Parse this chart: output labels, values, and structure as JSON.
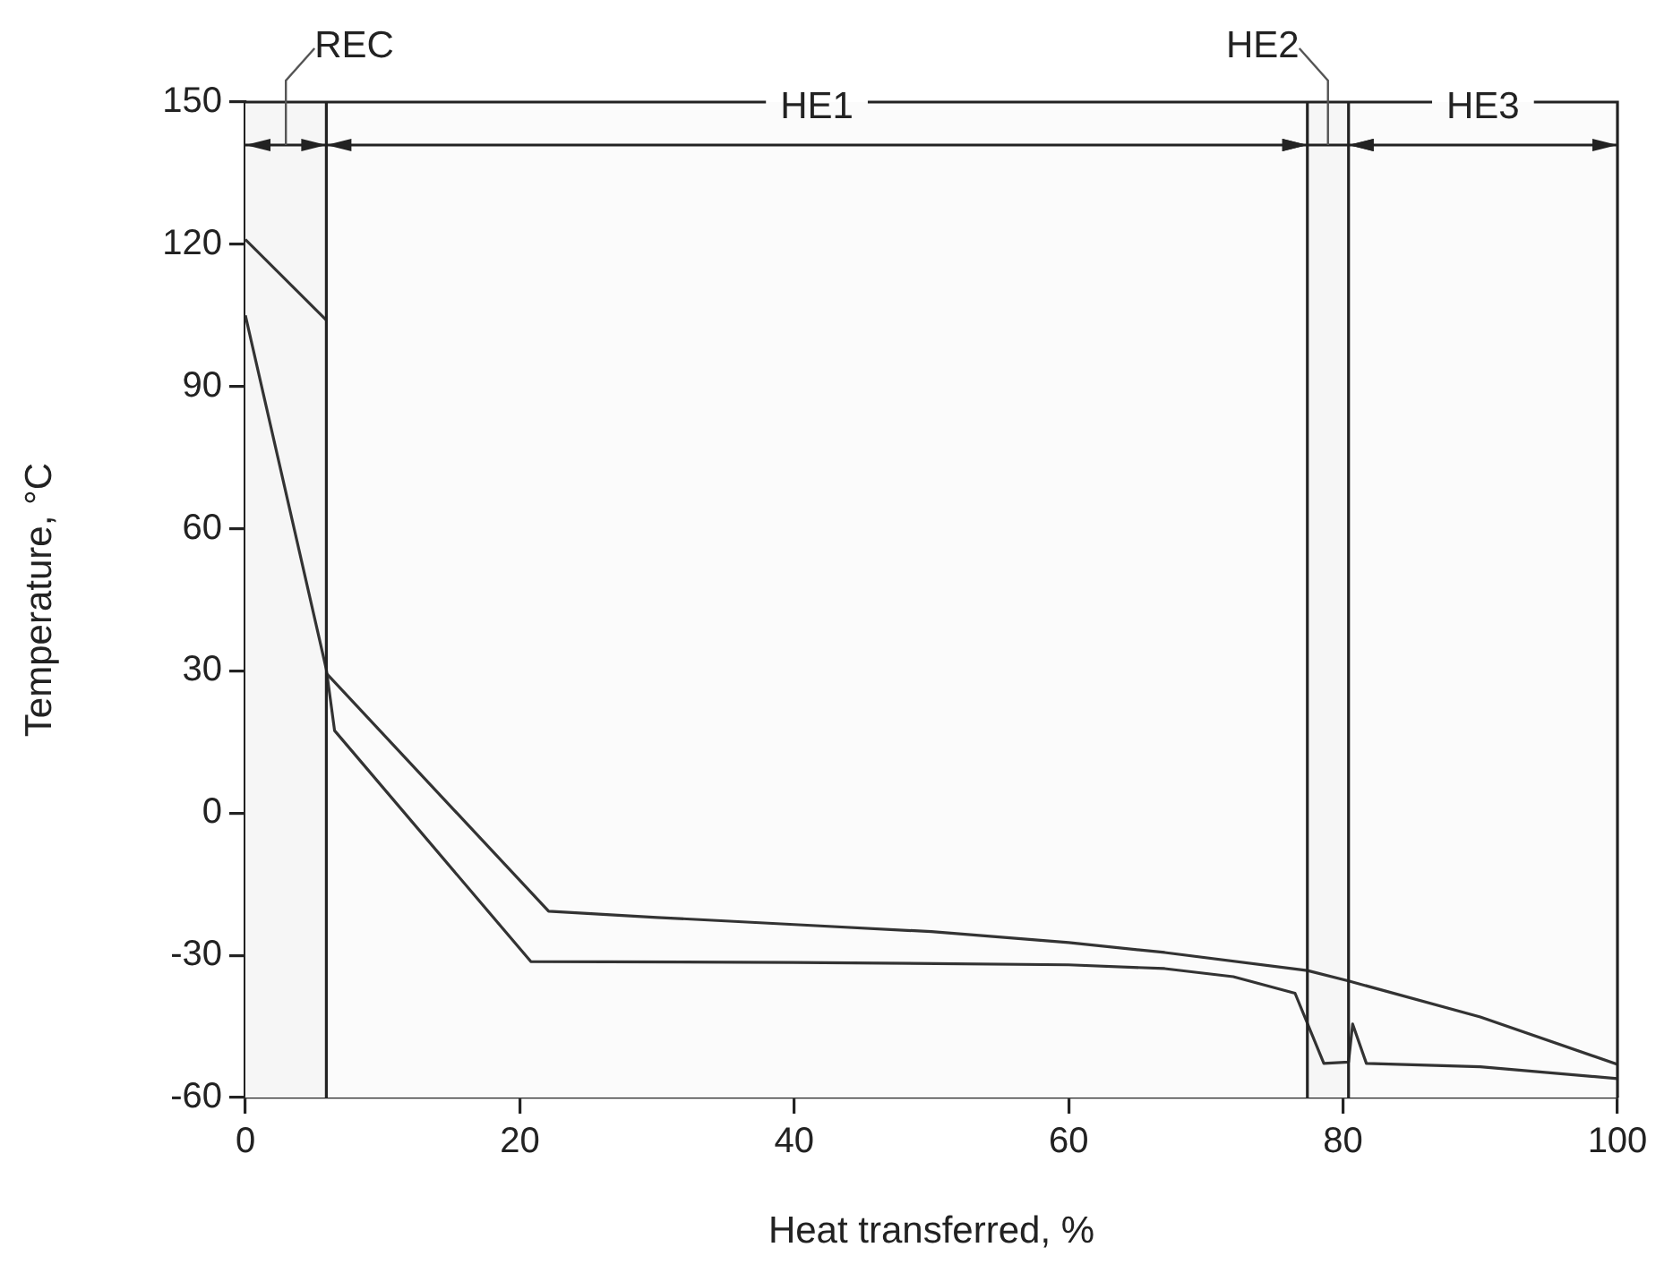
{
  "chart_data": {
    "type": "line",
    "xlabel": "Heat transferred, %",
    "ylabel": "Temperature, °C",
    "xlim": [
      0,
      100
    ],
    "xticks": [
      0,
      20,
      40,
      60,
      80,
      100
    ],
    "ylim": [
      -60,
      150
    ],
    "yticks": [
      -60,
      -30,
      0,
      30,
      60,
      90,
      120,
      150
    ],
    "legend": false,
    "marker": "none",
    "line_style": "solid",
    "series": [
      {
        "color": "#333333",
        "x": [
          0,
          5.9
        ],
        "values": [
          121,
          104
        ]
      },
      {
        "color": "#333333",
        "x": [
          5.9,
          22.1,
          30,
          40,
          50,
          60,
          67,
          77.4,
          80.4,
          90,
          100
        ],
        "values": [
          29.5,
          -20.7,
          -22,
          -23.5,
          -25,
          -27.3,
          -29.4,
          -33.2,
          -35.4,
          -43,
          -53
        ]
      },
      {
        "color": "#333333",
        "x": [
          0,
          5.9,
          6.5,
          20.8,
          40,
          60,
          67,
          72,
          76.5,
          78.6,
          80.4,
          80.7,
          81.7,
          90,
          100
        ],
        "values": [
          105,
          30.3,
          17.4,
          -31.3,
          -31.5,
          -32,
          -32.8,
          -34.5,
          -38,
          -52.8,
          -52.5,
          -44.5,
          -52.8,
          -53.5,
          -56
        ]
      }
    ],
    "ref_lines": [
      {
        "axis": "x",
        "value": 5.9
      },
      {
        "axis": "x",
        "value": 77.4
      },
      {
        "axis": "x",
        "value": 80.4
      }
    ],
    "bands": [
      {
        "axis": "x",
        "from": 0,
        "to": 5.9,
        "label": "REC",
        "color": "#f6f6f6"
      },
      {
        "axis": "x",
        "from": 5.9,
        "to": 77.4,
        "label": "HE1",
        "color": "#fbfbfb"
      },
      {
        "axis": "x",
        "from": 77.4,
        "to": 80.4,
        "label": "HE2",
        "color": "#f6f6f6"
      },
      {
        "axis": "x",
        "from": 80.4,
        "to": 100,
        "label": "HE3",
        "color": "#fbfbfb"
      }
    ]
  }
}
